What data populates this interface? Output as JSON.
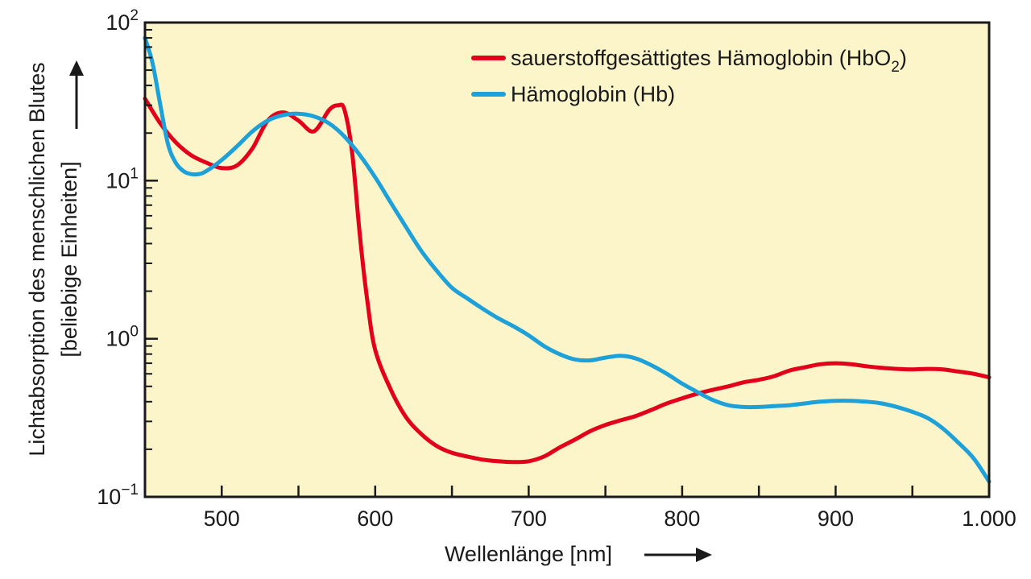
{
  "chart_data": {
    "type": "line",
    "title": "",
    "xlabel": "Wellenlänge [nm]",
    "ylabel_line1": "Lichtabsorption des menschlichen Blutes",
    "ylabel_line2": "[beliebige Einheiten]",
    "x_scale": "linear",
    "y_scale": "log",
    "xlim": [
      450,
      1000
    ],
    "ylim": [
      0.1,
      100
    ],
    "x_ticks": [
      {
        "value": 500,
        "label": "500"
      },
      {
        "value": 600,
        "label": "600"
      },
      {
        "value": 700,
        "label": "700"
      },
      {
        "value": 800,
        "label": "800"
      },
      {
        "value": 900,
        "label": "900"
      },
      {
        "value": 1000,
        "label": "1.000"
      }
    ],
    "y_ticks": [
      {
        "value": 0.1,
        "base": "10",
        "exp": "−1"
      },
      {
        "value": 1,
        "base": "10",
        "exp": "0"
      },
      {
        "value": 10,
        "base": "10",
        "exp": "1"
      },
      {
        "value": 100,
        "base": "10",
        "exp": "2"
      }
    ],
    "grid": false,
    "legend_position": "top-right",
    "background_color": "#fbf5c9",
    "series": [
      {
        "name": "sauerstoffgesättigtes Hämoglobin (HbO",
        "name_sub": "2",
        "name_suffix": ")",
        "color": "#e2001a",
        "x": [
          450,
          460,
          470,
          480,
          490,
          500,
          510,
          520,
          530,
          540,
          550,
          560,
          570,
          576,
          580,
          585,
          590,
          595,
          600,
          610,
          620,
          630,
          640,
          650,
          660,
          670,
          680,
          690,
          700,
          710,
          720,
          730,
          740,
          750,
          760,
          770,
          780,
          790,
          800,
          810,
          820,
          830,
          840,
          850,
          860,
          870,
          880,
          890,
          900,
          910,
          920,
          930,
          940,
          950,
          960,
          970,
          980,
          990,
          1000
        ],
        "y": [
          33,
          23,
          17.5,
          14.5,
          13,
          12,
          12.5,
          16,
          24,
          27,
          24,
          20.5,
          28,
          30,
          28,
          15,
          4.5,
          1.7,
          0.85,
          0.48,
          0.32,
          0.25,
          0.21,
          0.19,
          0.18,
          0.172,
          0.168,
          0.166,
          0.168,
          0.18,
          0.205,
          0.23,
          0.26,
          0.285,
          0.305,
          0.325,
          0.355,
          0.39,
          0.42,
          0.45,
          0.475,
          0.5,
          0.53,
          0.55,
          0.58,
          0.63,
          0.66,
          0.69,
          0.7,
          0.69,
          0.67,
          0.655,
          0.645,
          0.64,
          0.645,
          0.64,
          0.62,
          0.6,
          0.57
        ]
      },
      {
        "name": "Hämoglobin (Hb)",
        "color": "#1ea0d8",
        "x": [
          450,
          455,
          460,
          465,
          470,
          475,
          480,
          485,
          490,
          500,
          510,
          520,
          530,
          540,
          550,
          560,
          570,
          580,
          590,
          600,
          610,
          620,
          630,
          640,
          650,
          660,
          670,
          680,
          690,
          700,
          710,
          720,
          730,
          740,
          750,
          760,
          770,
          780,
          790,
          800,
          810,
          820,
          830,
          840,
          850,
          860,
          870,
          880,
          890,
          900,
          910,
          920,
          930,
          940,
          950,
          960,
          970,
          980,
          990,
          1000
        ],
        "y": [
          80,
          55,
          30,
          17,
          13,
          11.5,
          11,
          11,
          11.5,
          13.5,
          16.5,
          20.5,
          24,
          26,
          26.5,
          25.5,
          23,
          19,
          14.5,
          10.5,
          7.3,
          5.1,
          3.6,
          2.7,
          2.1,
          1.8,
          1.55,
          1.35,
          1.2,
          1.05,
          0.9,
          0.8,
          0.74,
          0.73,
          0.76,
          0.78,
          0.75,
          0.68,
          0.6,
          0.52,
          0.46,
          0.41,
          0.38,
          0.37,
          0.37,
          0.375,
          0.38,
          0.39,
          0.4,
          0.405,
          0.405,
          0.4,
          0.39,
          0.37,
          0.345,
          0.315,
          0.27,
          0.22,
          0.175,
          0.125
        ]
      }
    ]
  }
}
